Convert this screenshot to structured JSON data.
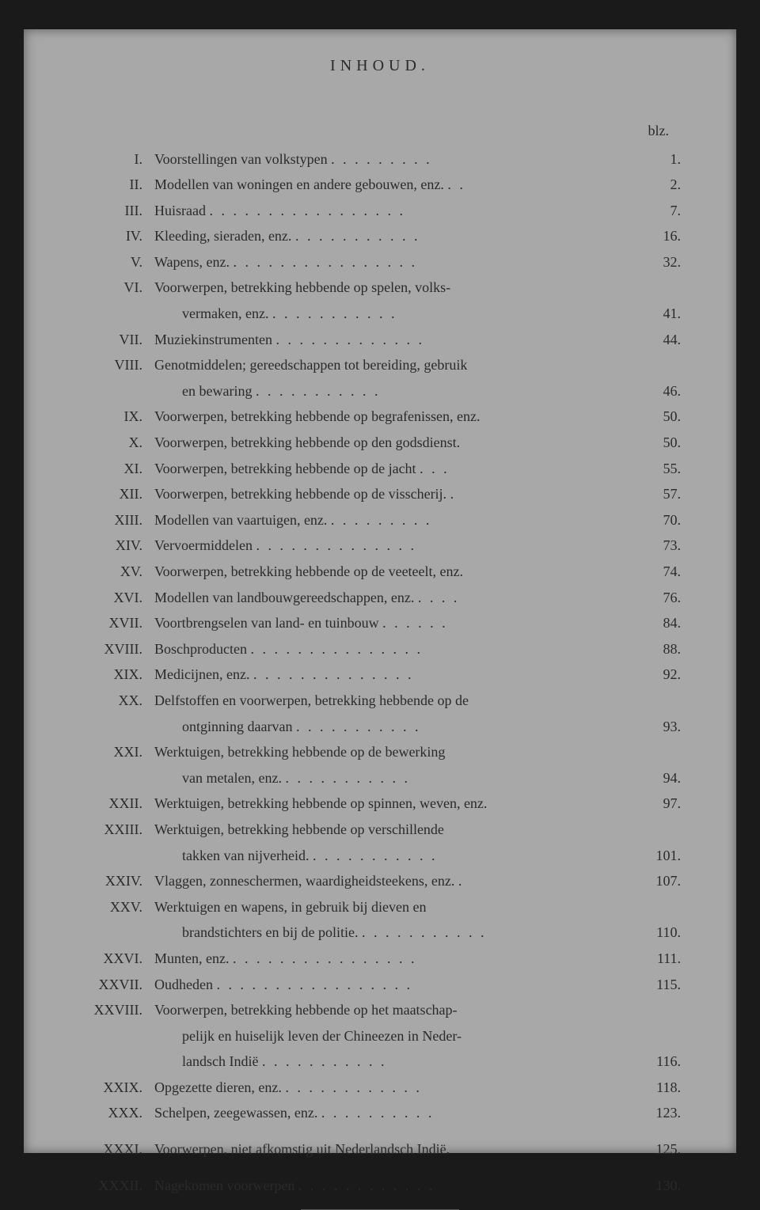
{
  "title": "INHOUD.",
  "page_label": "blz.",
  "background_color": "#a8a8a8",
  "text_color": "#2a2a2a",
  "font_size": 18,
  "entries": [
    {
      "roman": "I.",
      "text": "Voorstellingen van volkstypen",
      "page": "1."
    },
    {
      "roman": "II.",
      "text": "Modellen van woningen en andere gebouwen, enz.",
      "page": "2."
    },
    {
      "roman": "III.",
      "text": "Huisraad",
      "page": "7."
    },
    {
      "roman": "IV.",
      "text": "Kleeding, sieraden, enz.",
      "page": "16."
    },
    {
      "roman": "V.",
      "text": "Wapens, enz.",
      "page": "32."
    },
    {
      "roman": "VI.",
      "text": "Voorwerpen, betrekking hebbende op spelen, volks-",
      "continuation": "vermaken, enz.",
      "page": "41."
    },
    {
      "roman": "VII.",
      "text": "Muziekinstrumenten",
      "page": "44."
    },
    {
      "roman": "VIII.",
      "text": "Genotmiddelen; gereedschappen tot bereiding, gebruik",
      "continuation": "en bewaring",
      "page": "46."
    },
    {
      "roman": "IX.",
      "text": "Voorwerpen, betrekking hebbende op begrafenissen, enz.",
      "page": "50."
    },
    {
      "roman": "X.",
      "text": "Voorwerpen, betrekking hebbende op den godsdienst.",
      "page": "50."
    },
    {
      "roman": "XI.",
      "text": "Voorwerpen, betrekking hebbende op de jacht",
      "page": "55."
    },
    {
      "roman": "XII.",
      "text": "Voorwerpen, betrekking hebbende op de visscherij.",
      "page": "57."
    },
    {
      "roman": "XIII.",
      "text": "Modellen van vaartuigen, enz.",
      "page": "70."
    },
    {
      "roman": "XIV.",
      "text": "Vervoermiddelen",
      "page": "73."
    },
    {
      "roman": "XV.",
      "text": "Voorwerpen, betrekking hebbende op de veeteelt, enz.",
      "page": "74."
    },
    {
      "roman": "XVI.",
      "text": "Modellen van landbouwgereedschappen, enz.",
      "page": "76."
    },
    {
      "roman": "XVII.",
      "text": "Voortbrengselen van land- en tuinbouw",
      "page": "84."
    },
    {
      "roman": "XVIII.",
      "text": "Boschproducten",
      "page": "88."
    },
    {
      "roman": "XIX.",
      "text": "Medicijnen, enz.",
      "page": "92."
    },
    {
      "roman": "XX.",
      "text": "Delfstoffen en voorwerpen, betrekking hebbende op de",
      "continuation": "ontginning daarvan",
      "page": "93."
    },
    {
      "roman": "XXI.",
      "text": "Werktuigen, betrekking hebbende op de bewerking",
      "continuation": "van metalen, enz.",
      "page": "94."
    },
    {
      "roman": "XXII.",
      "text": "Werktuigen, betrekking hebbende op spinnen, weven, enz.",
      "page": "97."
    },
    {
      "roman": "XXIII.",
      "text": "Werktuigen, betrekking hebbende op verschillende",
      "continuation": "takken van nijverheid.",
      "page": "101."
    },
    {
      "roman": "XXIV.",
      "text": "Vlaggen, zonneschermen, waardigheidsteekens, enz.",
      "page": "107."
    },
    {
      "roman": "XXV.",
      "text": "Werktuigen en wapens, in gebruik bij dieven en",
      "continuation": "brandstichters en bij de politie.",
      "page": "110."
    },
    {
      "roman": "XXVI.",
      "text": "Munten, enz.",
      "page": "111."
    },
    {
      "roman": "XXVII.",
      "text": "Oudheden",
      "page": "115."
    },
    {
      "roman": "XXVIII.",
      "text": "Voorwerpen, betrekking hebbende op het maatschap-",
      "continuation": "pelijk en huiselijk leven der Chineezen in Neder-",
      "continuation2": "landsch Indië",
      "page": "116."
    },
    {
      "roman": "XXIX.",
      "text": "Opgezette dieren, enz.",
      "page": "118."
    },
    {
      "roman": "XXX.",
      "text": "Schelpen, zeegewassen, enz.",
      "page": "123."
    },
    {
      "roman": "XXXI.",
      "text": "Voorwerpen, niet afkomstig uit Nederlandsch Indië.",
      "page": "125.",
      "spaced": true
    },
    {
      "roman": "XXXII.",
      "text": "Nagekomen voorwerpen",
      "page": "130.",
      "spaced": true
    }
  ]
}
